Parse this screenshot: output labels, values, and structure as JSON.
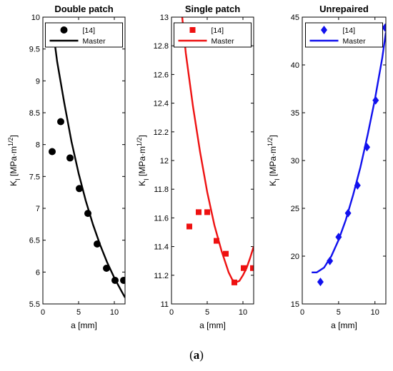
{
  "chart_data": [
    {
      "type": "line",
      "title": "Double patch",
      "xlabel": "a [mm]",
      "ylabel_main": "K",
      "ylabel_sub": "I",
      "ylabel_unit": "[MPa·m",
      "ylabel_sup": "1/2",
      "ylabel_close": "]",
      "xlim": [
        0,
        11.5
      ],
      "ylim": [
        5.5,
        10
      ],
      "xticks": [
        0,
        5,
        10
      ],
      "xtick_labels": [
        "0",
        "5",
        "10"
      ],
      "yticks": [
        5.5,
        6,
        6.5,
        7,
        7.5,
        8,
        8.5,
        9,
        9.5,
        10
      ],
      "ytick_labels": [
        "5.5",
        "6",
        "6.5",
        "7",
        "7.5",
        "8",
        "8.5",
        "9",
        "9.5",
        "10"
      ],
      "color": "#000000",
      "marker": "circle",
      "legend_position": "top",
      "series": [
        {
          "name": "[14]",
          "kind": "markers",
          "x": [
            1.3,
            2.5,
            3.8,
            5.1,
            6.3,
            7.6,
            8.9,
            10.1,
            11.3
          ],
          "y": [
            7.89,
            8.36,
            7.79,
            7.31,
            6.92,
            6.44,
            6.06,
            5.87,
            5.87
          ]
        },
        {
          "name": "Master",
          "kind": "line",
          "x": [
            1.3,
            2,
            3,
            4,
            5,
            6,
            7,
            8,
            9,
            10,
            11,
            11.5
          ],
          "y": [
            9.9,
            9.3,
            8.65,
            8.05,
            7.55,
            7.12,
            6.75,
            6.43,
            6.15,
            5.91,
            5.7,
            5.6
          ]
        }
      ]
    },
    {
      "type": "line",
      "title": "Single patch",
      "xlabel": "a [mm]",
      "ylabel_main": "K",
      "ylabel_sub": "I",
      "ylabel_unit": "[MPa·m",
      "ylabel_sup": "1/2",
      "ylabel_close": "]",
      "xlim": [
        0,
        11.5
      ],
      "ylim": [
        11,
        13
      ],
      "xticks": [
        0,
        5,
        10
      ],
      "xtick_labels": [
        "0",
        "5",
        "10"
      ],
      "yticks": [
        11,
        11.2,
        11.4,
        11.6,
        11.8,
        12,
        12.2,
        12.4,
        12.6,
        12.8,
        13
      ],
      "ytick_labels": [
        "11",
        "11.2",
        "11.4",
        "11.6",
        "11.8",
        "12",
        "12.2",
        "12.4",
        "12.6",
        "12.8",
        "13"
      ],
      "color": "#ee1111",
      "marker": "square",
      "legend_position": "top",
      "series": [
        {
          "name": "[14]",
          "kind": "markers",
          "x": [
            2.5,
            3.8,
            5.0,
            6.3,
            7.6,
            8.8,
            10.1,
            11.4
          ],
          "y": [
            11.54,
            11.64,
            11.64,
            11.44,
            11.35,
            11.15,
            11.25,
            11.25
          ]
        },
        {
          "name": "Master",
          "kind": "line",
          "x": [
            1.5,
            2,
            3,
            4,
            5,
            6,
            7,
            8,
            8.5,
            9,
            9.5,
            10,
            10.5,
            11,
            11.5
          ],
          "y": [
            13.0,
            12.75,
            12.38,
            12.06,
            11.78,
            11.55,
            11.37,
            11.22,
            11.17,
            11.15,
            11.16,
            11.2,
            11.25,
            11.32,
            11.4
          ]
        }
      ]
    },
    {
      "type": "line",
      "title": "Unrepaired",
      "xlabel": "a [mm]",
      "ylabel_main": "K",
      "ylabel_sub": "I",
      "ylabel_unit": "[MPa·m",
      "ylabel_sup": "1/2",
      "ylabel_close": "]",
      "xlim": [
        0,
        11.5
      ],
      "ylim": [
        15,
        45
      ],
      "xticks": [
        0,
        5,
        10
      ],
      "xtick_labels": [
        "0",
        "5",
        "10"
      ],
      "yticks": [
        15,
        20,
        25,
        30,
        35,
        40,
        45
      ],
      "ytick_labels": [
        "15",
        "20",
        "25",
        "30",
        "35",
        "40",
        "45"
      ],
      "color": "#1111ee",
      "marker": "diamond",
      "legend_position": "top",
      "series": [
        {
          "name": "[14]",
          "kind": "markers",
          "x": [
            2.5,
            3.8,
            5.0,
            6.3,
            7.6,
            8.9,
            10.1,
            11.4
          ],
          "y": [
            17.3,
            19.5,
            22.0,
            24.5,
            27.4,
            31.4,
            36.3,
            43.9
          ]
        },
        {
          "name": "Master",
          "kind": "line",
          "x": [
            1.3,
            2,
            3,
            4,
            5,
            6,
            7,
            8,
            9,
            10,
            11,
            11.5
          ],
          "y": [
            18.3,
            18.3,
            18.8,
            20.0,
            21.7,
            23.8,
            26.4,
            29.3,
            32.7,
            36.4,
            40.7,
            43.4
          ]
        }
      ]
    }
  ],
  "caption": {
    "open": "(",
    "letter": "a",
    "close": ")"
  }
}
